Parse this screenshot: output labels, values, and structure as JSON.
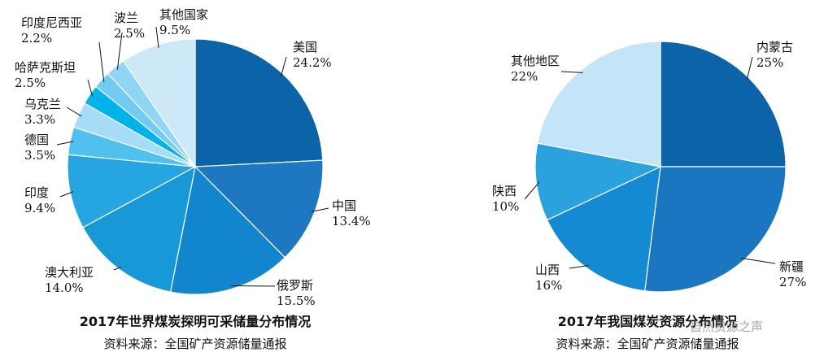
{
  "chart_data": [
    {
      "type": "pie",
      "title": "2017年世界煤炭探明可采储量分布情况",
      "source": "资料来源：全国矿产资源储量通报",
      "slices": [
        {
          "label": "美国",
          "value": 24.2,
          "value_text": "24.2%",
          "color": "#0b63a8"
        },
        {
          "label": "中国",
          "value": 13.4,
          "value_text": "13.4%",
          "color": "#1d78c1"
        },
        {
          "label": "俄罗斯",
          "value": 15.5,
          "value_text": "15.5%",
          "color": "#1186cf"
        },
        {
          "label": "澳大利亚",
          "value": 14.0,
          "value_text": "14.0%",
          "color": "#1699d6"
        },
        {
          "label": "印度",
          "value": 9.4,
          "value_text": "9.4%",
          "color": "#25a6e0"
        },
        {
          "label": "德国",
          "value": 3.5,
          "value_text": "3.5%",
          "color": "#50c0ee"
        },
        {
          "label": "乌克兰",
          "value": 3.3,
          "value_text": "3.3%",
          "color": "#a6ddf6"
        },
        {
          "label": "哈萨克斯坦",
          "value": 2.5,
          "value_text": "2.5%",
          "color": "#00b3ea"
        },
        {
          "label": "印度尼西亚",
          "value": 2.2,
          "value_text": "2.2%",
          "color": "#71cbf2"
        },
        {
          "label": "波兰",
          "value": 2.5,
          "value_text": "2.5%",
          "color": "#8fd5f4"
        },
        {
          "label": "其他国家",
          "value": 9.5,
          "value_text": "9.5%",
          "color": "#cde9f8"
        }
      ]
    },
    {
      "type": "pie",
      "title": "2017年我国煤炭资源分布情况",
      "source": "资料来源：全国矿产资源储量通报",
      "slices": [
        {
          "label": "内蒙古",
          "value": 25,
          "value_text": "25%",
          "color": "#0b63a8"
        },
        {
          "label": "新疆",
          "value": 27,
          "value_text": "27%",
          "color": "#1a76c0"
        },
        {
          "label": "山西",
          "value": 16,
          "value_text": "16%",
          "color": "#138ad2"
        },
        {
          "label": "陕西",
          "value": 10,
          "value_text": "10%",
          "color": "#2aa2de"
        },
        {
          "label": "其他地区",
          "value": 22,
          "value_text": "22%",
          "color": "#c4e5f7"
        }
      ]
    }
  ],
  "watermark": "自然资源之声"
}
